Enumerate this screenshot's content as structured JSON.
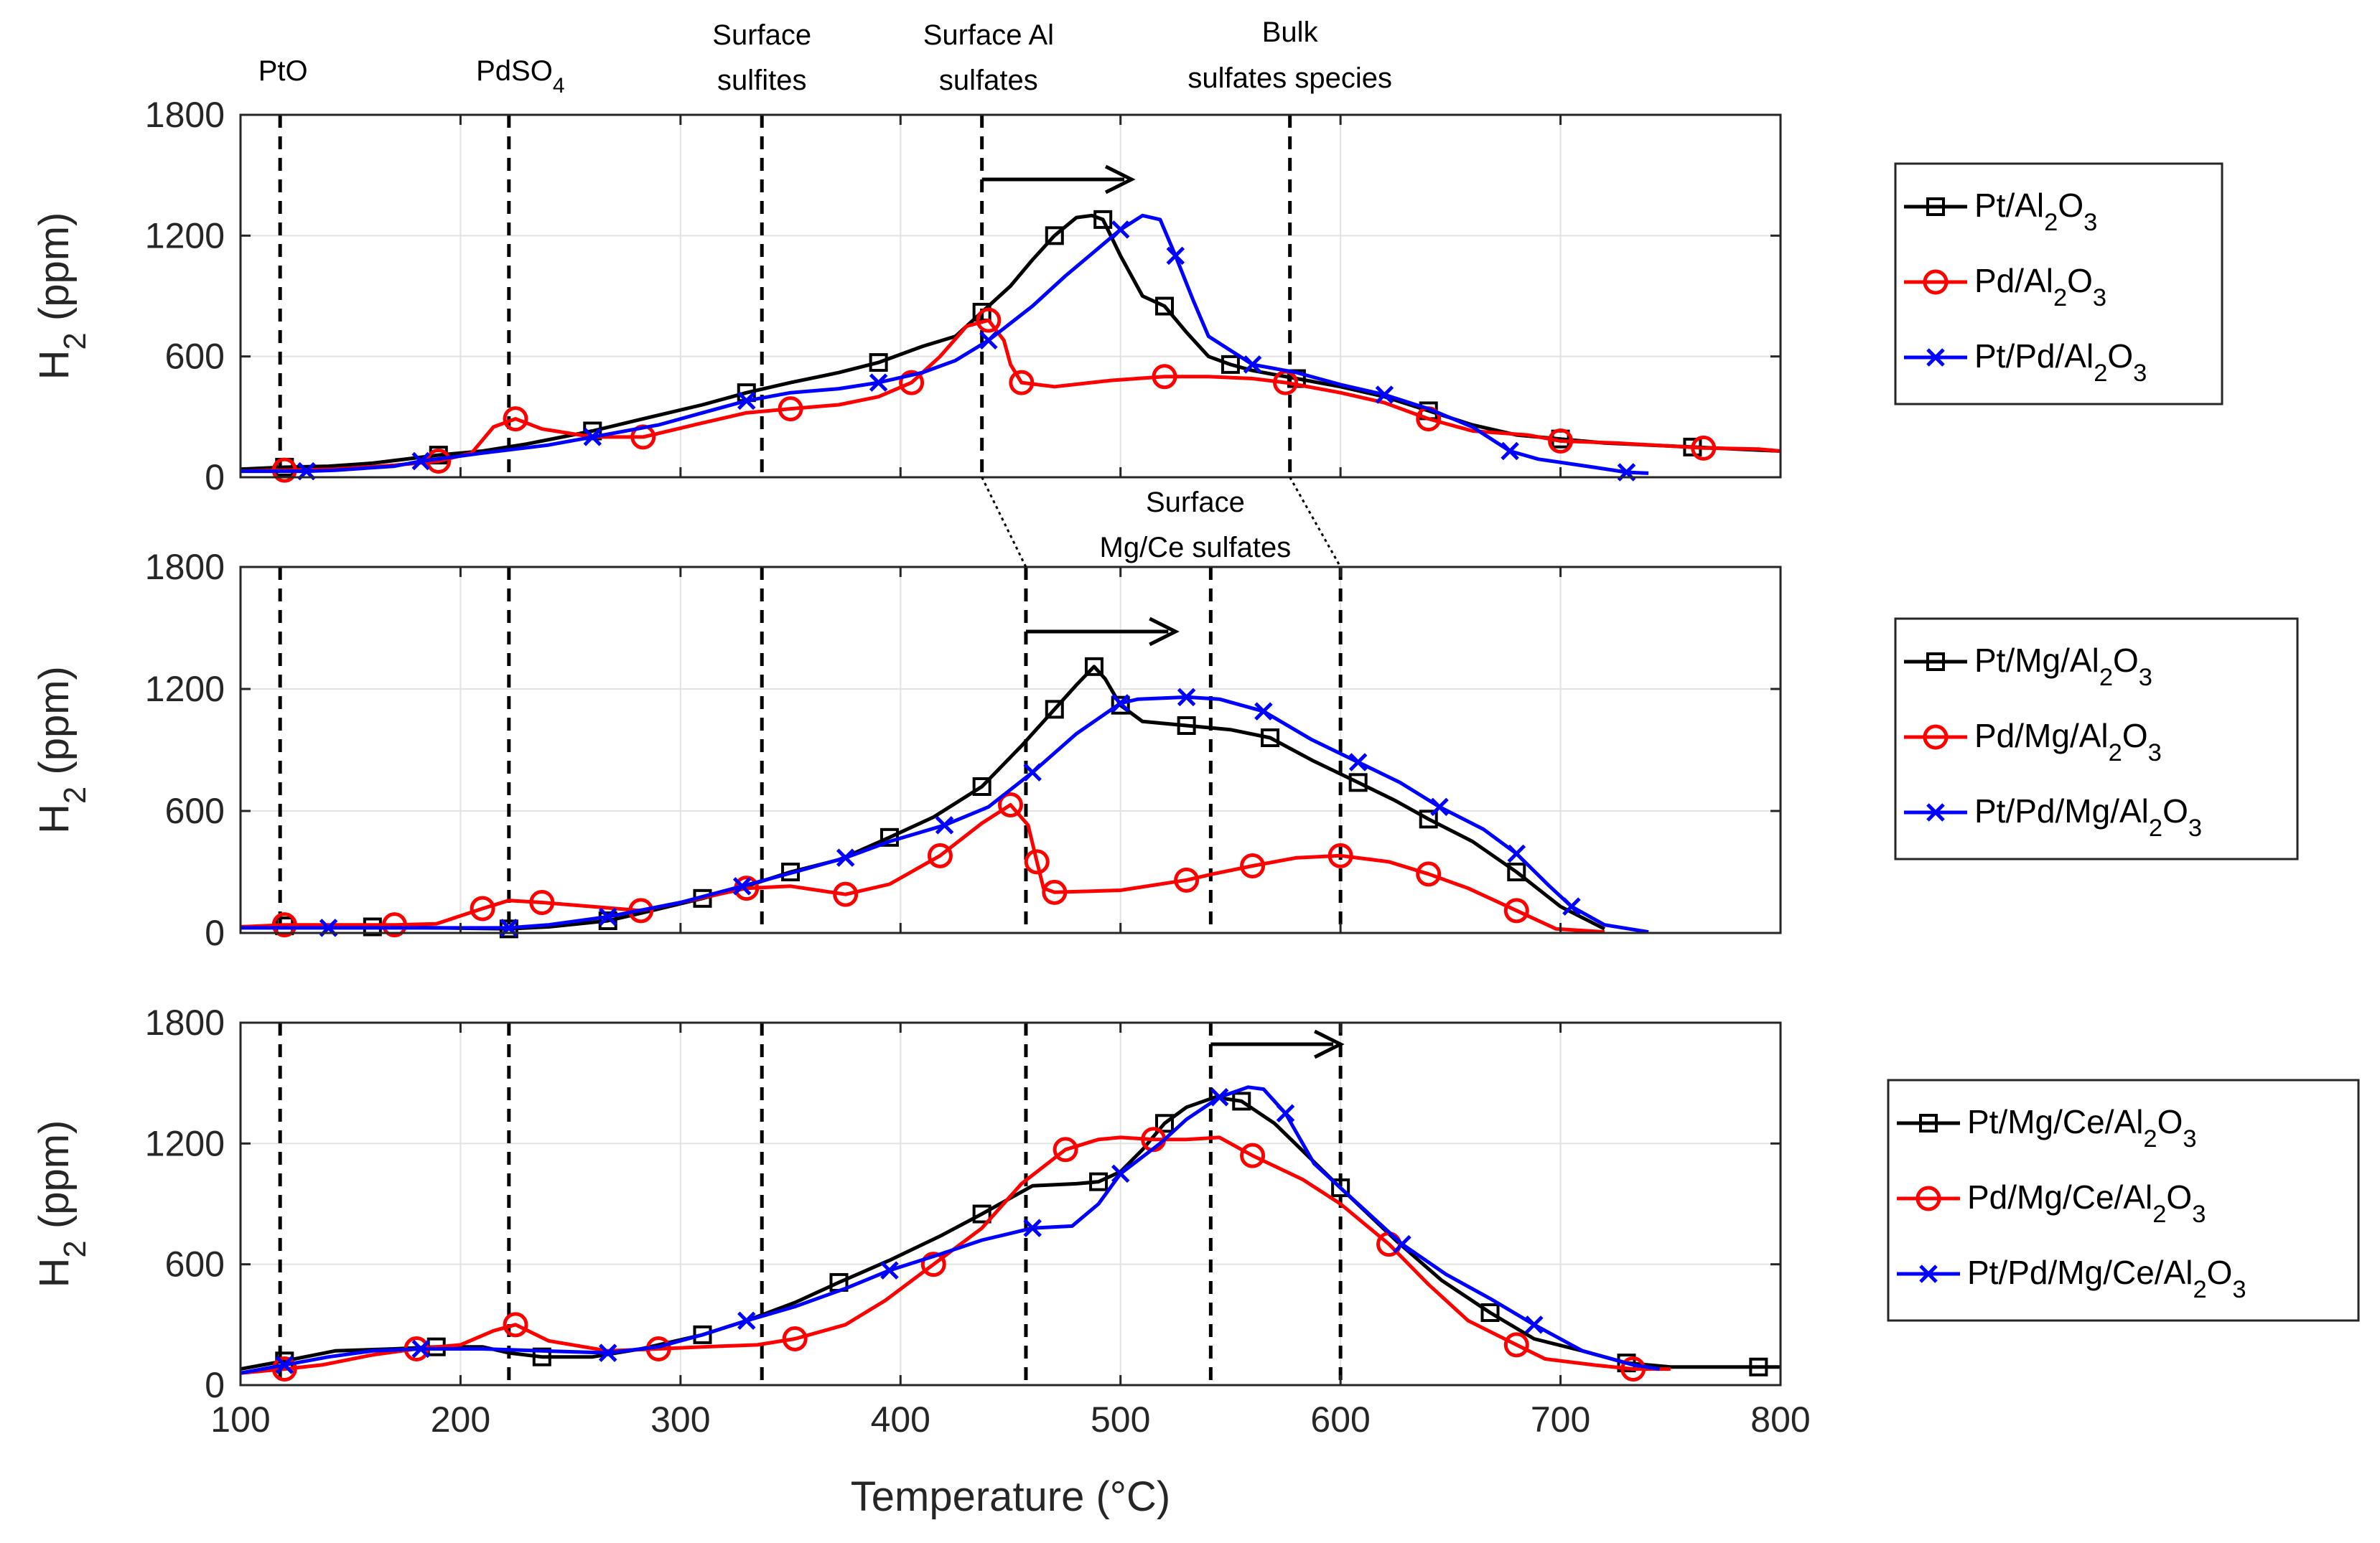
{
  "chart_data": {
    "type": "line",
    "xlabel": "Temperature (°C)",
    "ylabel": "H₂ (ppm)",
    "xlim": [
      100,
      800
    ],
    "xticks": [
      "100",
      "200",
      "300",
      "400",
      "500",
      "600",
      "700",
      "800"
    ],
    "yticks": [
      "0",
      "600",
      "1200",
      "1800"
    ],
    "ylim": [
      0,
      1800
    ],
    "grid": true,
    "colors": {
      "black": "#000000",
      "red": "#ff0000",
      "blue": "#0000ff"
    },
    "annotations_top": [
      "PtO",
      "PdSO₄",
      "Surface",
      "sulfites",
      "Surface Al",
      "sulfates",
      "Bulk",
      "sulfates species"
    ],
    "annotations_middle": [
      "Surface",
      "Mg/Ce sulfates"
    ],
    "panels": [
      {
        "legend_position": "right",
        "vlines": [
          118,
          222,
          337,
          437,
          577
        ],
        "arrow": [
          437,
          505
        ],
        "series": [
          {
            "name": "Pt/Al₂O₃",
            "color": "#000000",
            "marker": "square",
            "x": [
              100,
              120,
              140,
              160,
              190,
              210,
              230,
              260,
              283,
              310,
              330,
              350,
              372,
              390,
              410,
              425,
              437,
              450,
              460,
              470,
              480,
              487,
              492,
              500,
              510,
              520,
              530,
              540,
              550,
              560,
              570,
              580,
              600,
              620,
              640,
              660,
              680,
              700,
              720,
              740,
              760,
              780,
              800
            ],
            "y": [
              40,
              50,
              55,
              70,
              110,
              130,
              165,
              230,
              290,
              360,
              420,
              470,
              520,
              570,
              650,
              700,
              820,
              950,
              1080,
              1200,
              1290,
              1300,
              1280,
              1100,
              900,
              850,
              720,
              600,
              560,
              530,
              510,
              490,
              450,
              400,
              330,
              260,
              210,
              190,
              170,
              160,
              150,
              140,
              130
            ]
          },
          {
            "name": "Pd/Al₂O₃",
            "color": "#ff0000",
            "marker": "circle",
            "x": [
              100,
              120,
              143,
              170,
              190,
              205,
              215,
              225,
              237,
              260,
              283,
              310,
              330,
              350,
              372,
              390,
              405,
              418,
              430,
              440,
              447,
              450,
              455,
              470,
              495,
              520,
              540,
              560,
              575,
              600,
              620,
              640,
              660,
              685,
              700,
              725,
              750,
              765,
              790,
              800
            ],
            "y": [
              30,
              35,
              40,
              60,
              80,
              120,
              250,
              290,
              240,
              200,
              200,
              270,
              320,
              340,
              360,
              400,
              470,
              600,
              750,
              780,
              680,
              560,
              470,
              450,
              480,
              500,
              500,
              490,
              470,
              420,
              370,
              290,
              230,
              210,
              180,
              170,
              155,
              145,
              140,
              130
            ]
          },
          {
            "name": "Pt/Pd/Al₂O₃",
            "color": "#0000ff",
            "marker": "x",
            "x": [
              100,
              130,
              143,
              170,
              182,
              210,
              240,
              260,
              290,
              310,
              330,
              350,
              372,
              390,
              410,
              425,
              440,
              460,
              475,
              500,
              510,
              518,
              525,
              533,
              540,
              560,
              580,
              600,
              620,
              640,
              660,
              677,
              690,
              715,
              730,
              740
            ],
            "y": [
              30,
              30,
              35,
              55,
              80,
              120,
              160,
              200,
              260,
              320,
              380,
              420,
              440,
              470,
              520,
              580,
              680,
              850,
              1000,
              1230,
              1300,
              1280,
              1100,
              880,
              700,
              560,
              520,
              460,
              410,
              340,
              250,
              130,
              90,
              50,
              25,
              20
            ]
          }
        ]
      },
      {
        "legend_position": "right",
        "vlines": [
          118,
          222,
          337,
          457,
          541,
          600
        ],
        "arrow": [
          457,
          525
        ],
        "series": [
          {
            "name": "Pt/Mg/Al₂O₃",
            "color": "#000000",
            "marker": "square",
            "x": [
              100,
              120,
              140,
              160,
              190,
              222,
              240,
              267,
              283,
              310,
              330,
              350,
              372,
              395,
              415,
              437,
              455,
              470,
              480,
              488,
              493,
              500,
              510,
              530,
              550,
              568,
              587,
              608,
              625,
              640,
              660,
              680,
              700,
              720
            ],
            "y": [
              30,
              35,
              30,
              30,
              25,
              20,
              30,
              60,
              100,
              170,
              230,
              300,
              360,
              470,
              570,
              720,
              920,
              1100,
              1220,
              1310,
              1250,
              1120,
              1040,
              1020,
              1000,
              960,
              850,
              740,
              650,
              560,
              450,
              300,
              130,
              20
            ]
          },
          {
            "name": "Pd/Mg/Al₂O₃",
            "color": "#ff0000",
            "marker": "circle",
            "x": [
              100,
              120,
              143,
              170,
              189,
              210,
              222,
              237,
              260,
              282,
              300,
              330,
              350,
              375,
              395,
              418,
              437,
              450,
              458,
              462,
              465,
              470,
              500,
              530,
              542,
              560,
              580,
              600,
              622,
              640,
              658,
              680,
              698,
              720
            ],
            "y": [
              30,
              40,
              40,
              40,
              45,
              120,
              160,
              150,
              130,
              110,
              150,
              220,
              230,
              190,
              240,
              380,
              540,
              630,
              530,
              350,
              220,
              200,
              210,
              260,
              290,
              330,
              370,
              380,
              350,
              290,
              220,
              110,
              20,
              5
            ]
          },
          {
            "name": "Pt/Pd/Mg/Al₂O₃",
            "color": "#0000ff",
            "marker": "x",
            "x": [
              100,
              140,
              182,
              222,
              240,
              267,
              300,
              328,
              352,
              375,
              395,
              420,
              440,
              460,
              480,
              500,
              508,
              530,
              545,
              565,
              587,
              608,
              627,
              645,
              665,
              680,
              695,
              705,
              720,
              740
            ],
            "y": [
              25,
              25,
              25,
              25,
              40,
              80,
              150,
              230,
              300,
              370,
              450,
              530,
              620,
              790,
              980,
              1130,
              1150,
              1160,
              1150,
              1090,
              950,
              840,
              740,
              620,
              510,
              390,
              230,
              130,
              40,
              5
            ]
          }
        ]
      },
      {
        "legend_position": "right",
        "vlines": [
          118,
          222,
          337,
          457,
          541,
          600
        ],
        "arrow": [
          541,
          600
        ],
        "series": [
          {
            "name": "Pt/Mg/Ce/Al₂O₃",
            "color": "#000000",
            "marker": "square",
            "x": [
              100,
              120,
              143,
              170,
              189,
              210,
              222,
              237,
              260,
              282,
              310,
              330,
              352,
              372,
              395,
              418,
              437,
              460,
              480,
              490,
              500,
              510,
              520,
              530,
              543,
              555,
              570,
              585,
              600,
              625,
              646,
              668,
              688,
              710,
              730,
              750,
              770,
              790,
              800
            ],
            "y": [
              80,
              120,
              170,
              180,
              190,
              190,
              160,
              140,
              140,
              180,
              250,
              320,
              410,
              510,
              620,
              740,
              850,
              990,
              1000,
              1010,
              1060,
              1170,
              1300,
              1380,
              1430,
              1410,
              1300,
              1140,
              980,
              720,
              520,
              360,
              230,
              170,
              110,
              90,
              90,
              90,
              90
            ]
          },
          {
            "name": "Pd/Mg/Ce/Al₂O₃",
            "color": "#ff0000",
            "marker": "circle",
            "x": [
              100,
              120,
              137,
              160,
              180,
              200,
              215,
              225,
              240,
              267,
              290,
              310,
              335,
              352,
              375,
              393,
              415,
              437,
              455,
              475,
              490,
              500,
              515,
              530,
              545,
              560,
              583,
              600,
              622,
              640,
              658,
              680,
              693,
              715,
              733,
              750
            ],
            "y": [
              60,
              80,
              100,
              150,
              180,
              200,
              270,
              300,
              220,
              170,
              180,
              190,
              200,
              230,
              300,
              420,
              600,
              780,
              1000,
              1170,
              1220,
              1230,
              1220,
              1220,
              1230,
              1140,
              1020,
              900,
              700,
              500,
              320,
              200,
              130,
              100,
              80,
              80
            ]
          },
          {
            "name": "Pt/Pd/Mg/Ce/Al₂O₃",
            "color": "#0000ff",
            "marker": "x",
            "x": [
              100,
              120,
              140,
              160,
              182,
              210,
              237,
              267,
              290,
              310,
              330,
              352,
              375,
              395,
              418,
              437,
              460,
              478,
              490,
              500,
              518,
              530,
              545,
              558,
              565,
              575,
              588,
              600,
              628,
              648,
              668,
              688,
              710,
              733,
              745
            ],
            "y": [
              60,
              100,
              140,
              170,
              180,
              180,
              170,
              160,
              190,
              250,
              320,
              390,
              480,
              570,
              650,
              720,
              780,
              790,
              900,
              1050,
              1200,
              1320,
              1430,
              1480,
              1470,
              1350,
              1100,
              980,
              700,
              550,
              430,
              300,
              170,
              100,
              80
            ]
          }
        ]
      }
    ]
  }
}
